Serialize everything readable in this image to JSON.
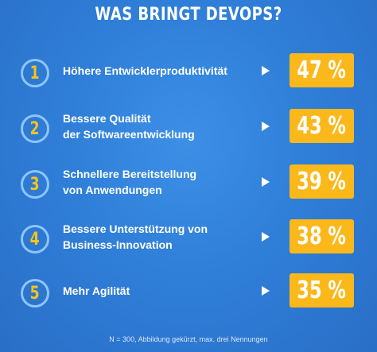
{
  "title": "WAS BRINGT DEVOPS?",
  "chart_data": {
    "type": "table",
    "unit": "%",
    "categories": [
      "Höhere Entwicklerproduktivität",
      "Bessere Qualität\nder Softwareentwicklung",
      "Schnellere Bereitstellung\nvon Anwendungen",
      "Bessere Unterstützung von\nBusiness-Innovation",
      "Mehr Agilität"
    ],
    "ranks": [
      "1",
      "2",
      "3",
      "4",
      "5"
    ],
    "values": [
      47,
      43,
      39,
      38,
      35
    ],
    "value_labels": [
      "47 %",
      "43 %",
      "39 %",
      "38 %",
      "35 %"
    ]
  },
  "footnote": "N = 300, Abbildung gekürzt, max. drei Nennungen",
  "colors": {
    "background": "#2f7fd9",
    "value_box": "#fbb81b",
    "rank_number": "#f7c21c",
    "badge_ring": "#8cc6ff"
  },
  "icons": {
    "row_arrow": "play-arrow-icon"
  }
}
